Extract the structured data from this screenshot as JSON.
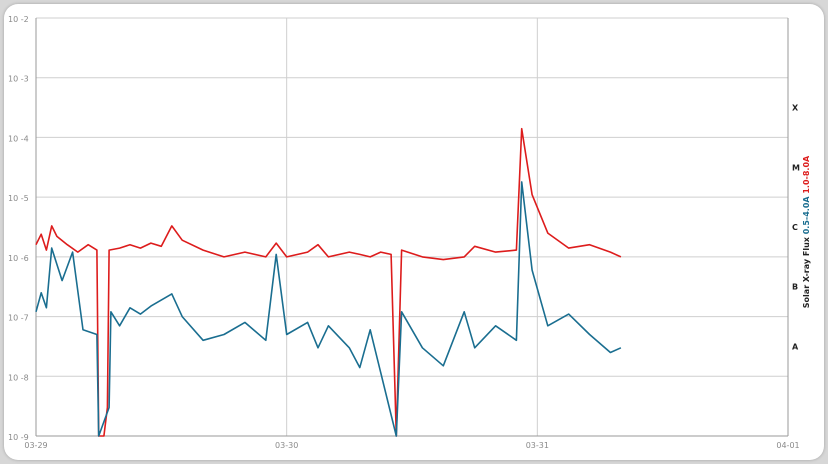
{
  "chart_data": {
    "type": "line",
    "title": "",
    "x_range": [
      "03-29",
      "04-01"
    ],
    "x_ticks": [
      "03-29",
      "03-30",
      "03-31",
      "04-01"
    ],
    "y_scale": "log",
    "ylim": [
      1e-09,
      0.01
    ],
    "y_ticks": [
      "10^-2",
      "10^-3",
      "10^-4",
      "10^-5",
      "10^-6",
      "10^-7",
      "10^-8",
      "10^-9"
    ],
    "y_tick_labels": [
      {
        "base": "10",
        "exp": "-2"
      },
      {
        "base": "10",
        "exp": "-3"
      },
      {
        "base": "10",
        "exp": "-4"
      },
      {
        "base": "10",
        "exp": "-5"
      },
      {
        "base": "10",
        "exp": "-6"
      },
      {
        "base": "10",
        "exp": "-7"
      },
      {
        "base": "10",
        "exp": "-8"
      },
      {
        "base": "10",
        "exp": "-9"
      }
    ],
    "grid": true,
    "flare_classes": [
      "X",
      "M",
      "C",
      "B",
      "A"
    ],
    "right_axis_label": {
      "title": "Solar X-ray Flux",
      "short": "0.5-4.0A",
      "long": "1.0-8.0A"
    },
    "colors": {
      "long": "#dd1c1c",
      "short": "#1a6e90",
      "grid": "#cfcfcf",
      "axis": "#9a9a9a"
    },
    "series": [
      {
        "name": "1.0-8.0A",
        "points": [
          [
            "03-29 00:00",
            1.6e-06
          ],
          [
            "03-29 00:30",
            2.4e-06
          ],
          [
            "03-29 01:00",
            1.3e-06
          ],
          [
            "03-29 01:30",
            3.3e-06
          ],
          [
            "03-29 02:00",
            2.2e-06
          ],
          [
            "03-29 03:00",
            1.6e-06
          ],
          [
            "03-29 04:00",
            1.2e-06
          ],
          [
            "03-29 05:00",
            1.6e-06
          ],
          [
            "03-29 05:50",
            1.3e-06
          ],
          [
            "03-29 06:00",
            1e-09
          ],
          [
            "03-29 06:30",
            1e-09
          ],
          [
            "03-29 06:50",
            3e-09
          ],
          [
            "03-29 07:00",
            1.3e-06
          ],
          [
            "03-29 08:00",
            1.4e-06
          ],
          [
            "03-29 09:00",
            1.6e-06
          ],
          [
            "03-29 10:00",
            1.4e-06
          ],
          [
            "03-29 11:00",
            1.7e-06
          ],
          [
            "03-29 12:00",
            1.5e-06
          ],
          [
            "03-29 13:00",
            3.3e-06
          ],
          [
            "03-29 14:00",
            1.9e-06
          ],
          [
            "03-29 16:00",
            1.3e-06
          ],
          [
            "03-29 18:00",
            1e-06
          ],
          [
            "03-29 20:00",
            1.2e-06
          ],
          [
            "03-29 22:00",
            1e-06
          ],
          [
            "03-29 23:00",
            1.7e-06
          ],
          [
            "03-30 00:00",
            1e-06
          ],
          [
            "03-30 02:00",
            1.2e-06
          ],
          [
            "03-30 03:00",
            1.6e-06
          ],
          [
            "03-30 04:00",
            1e-06
          ],
          [
            "03-30 06:00",
            1.2e-06
          ],
          [
            "03-30 07:00",
            1.1e-06
          ],
          [
            "03-30 08:00",
            1e-06
          ],
          [
            "03-30 09:00",
            1.2e-06
          ],
          [
            "03-30 10:00",
            1.1e-06
          ],
          [
            "03-30 10:30",
            1e-09
          ],
          [
            "03-30 11:00",
            1.3e-06
          ],
          [
            "03-30 13:00",
            1e-06
          ],
          [
            "03-30 15:00",
            9e-07
          ],
          [
            "03-30 17:00",
            1e-06
          ],
          [
            "03-30 18:00",
            1.5e-06
          ],
          [
            "03-30 20:00",
            1.2e-06
          ],
          [
            "03-30 22:00",
            1.3e-06
          ],
          [
            "03-30 22:30",
            0.00014
          ],
          [
            "03-30 23:30",
            1.1e-05
          ],
          [
            "03-31 01:00",
            2.5e-06
          ],
          [
            "03-31 03:00",
            1.4e-06
          ],
          [
            "03-31 05:00",
            1.6e-06
          ],
          [
            "03-31 07:00",
            1.2e-06
          ],
          [
            "03-31 08:00",
            1e-06
          ]
        ]
      },
      {
        "name": "0.5-4.0A",
        "points": [
          [
            "03-29 00:00",
            1.2e-07
          ],
          [
            "03-29 00:30",
            2.5e-07
          ],
          [
            "03-29 01:00",
            1.4e-07
          ],
          [
            "03-29 01:30",
            1.4e-06
          ],
          [
            "03-29 02:30",
            4e-07
          ],
          [
            "03-29 03:30",
            1.2e-06
          ],
          [
            "03-29 04:30",
            6e-08
          ],
          [
            "03-29 05:50",
            5e-08
          ],
          [
            "03-29 06:00",
            1e-09
          ],
          [
            "03-29 07:00",
            3e-09
          ],
          [
            "03-29 07:10",
            1.2e-07
          ],
          [
            "03-29 08:00",
            7e-08
          ],
          [
            "03-29 09:00",
            1.4e-07
          ],
          [
            "03-29 10:00",
            1.1e-07
          ],
          [
            "03-29 11:00",
            1.5e-07
          ],
          [
            "03-29 13:00",
            2.4e-07
          ],
          [
            "03-29 14:00",
            1e-07
          ],
          [
            "03-29 16:00",
            4e-08
          ],
          [
            "03-29 18:00",
            5e-08
          ],
          [
            "03-29 20:00",
            8e-08
          ],
          [
            "03-29 22:00",
            4e-08
          ],
          [
            "03-29 23:00",
            1.1e-06
          ],
          [
            "03-30 00:00",
            5e-08
          ],
          [
            "03-30 02:00",
            8e-08
          ],
          [
            "03-30 03:00",
            3e-08
          ],
          [
            "03-30 04:00",
            7e-08
          ],
          [
            "03-30 06:00",
            3e-08
          ],
          [
            "03-30 07:00",
            1.4e-08
          ],
          [
            "03-30 08:00",
            6e-08
          ],
          [
            "03-30 10:30",
            1e-09
          ],
          [
            "03-30 11:00",
            1.2e-07
          ],
          [
            "03-30 13:00",
            3e-08
          ],
          [
            "03-30 15:00",
            1.5e-08
          ],
          [
            "03-30 17:00",
            1.2e-07
          ],
          [
            "03-30 18:00",
            3e-08
          ],
          [
            "03-30 20:00",
            7e-08
          ],
          [
            "03-30 22:00",
            4e-08
          ],
          [
            "03-30 22:30",
            1.8e-05
          ],
          [
            "03-30 23:30",
            6e-07
          ],
          [
            "03-31 01:00",
            7e-08
          ],
          [
            "03-31 03:00",
            1.1e-07
          ],
          [
            "03-31 05:00",
            5e-08
          ],
          [
            "03-31 07:00",
            2.5e-08
          ],
          [
            "03-31 08:00",
            3e-08
          ]
        ]
      }
    ]
  }
}
